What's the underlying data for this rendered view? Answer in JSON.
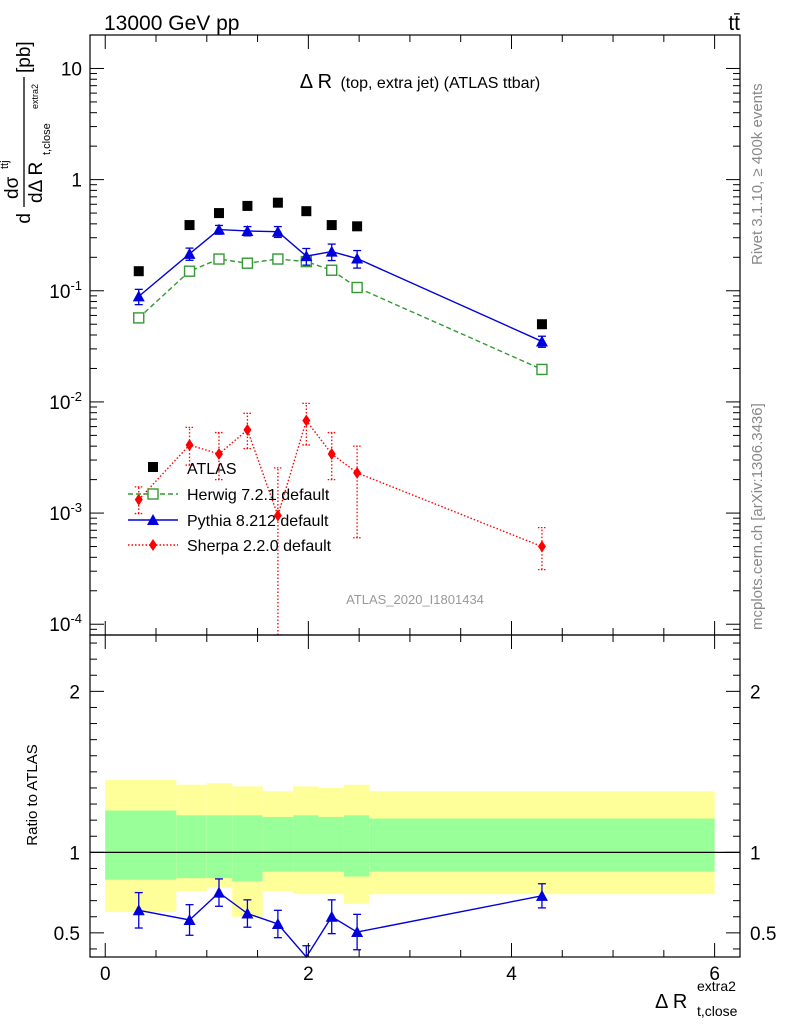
{
  "header": {
    "energy_label": "13000 GeV pp",
    "process_label": "tt̄"
  },
  "side_text": {
    "rivet": "Rivet 3.1.10, ≥ 400k events",
    "mcplots": "mcplots.cern.ch [arXiv:1306.3436]"
  },
  "colors": {
    "atlas": "#000000",
    "herwig": "#339933",
    "pythia": "#0000dd",
    "sherpa": "#ff0000",
    "band_inner": "#99ff99",
    "band_outer": "#ffff99"
  },
  "chart_data": [
    {
      "type": "scatter",
      "title": "Δ R (top, extra jet) (ATLAS ttbar)",
      "title_main": "Δ R",
      "title_sub": "(top, extra jet) (ATLAS ttbar)",
      "analysis_id": "ATLAS_2020_I1801434",
      "ylabel": "dσ^ttj / dΔ R_t,close^extra2 [pb]",
      "ylabel_parts": {
        "d1": "d",
        "sigma": "dσ",
        "sigma_sup": "ttj",
        "denominator": "dΔ R",
        "den_sub": "t,close",
        "den_sup": "extra2",
        "unit": "[pb]"
      },
      "yscale": "log",
      "ylim": [
        8e-05,
        20
      ],
      "xlim": [
        -0.15,
        6.25
      ],
      "ytick_labels": [
        "10^-4",
        "10^-3",
        "10^-2",
        "10^-1",
        "1",
        "10"
      ],
      "ytick_values": [
        0.0001,
        0.001,
        0.01,
        0.1,
        1,
        10
      ],
      "legend_position": "lower-left",
      "series": [
        {
          "name": "ATLAS",
          "style": "square",
          "x": [
            0.33,
            0.83,
            1.12,
            1.4,
            1.7,
            1.98,
            2.23,
            2.48,
            4.3
          ],
          "y": [
            0.15,
            0.39,
            0.5,
            0.58,
            0.62,
            0.52,
            0.39,
            0.38,
            0.05
          ]
        },
        {
          "name": "Herwig 7.2.1 default",
          "style": "open-square-dashed",
          "x": [
            0.33,
            0.83,
            1.12,
            1.4,
            1.7,
            1.98,
            2.23,
            2.48,
            4.3
          ],
          "y": [
            0.057,
            0.15,
            0.193,
            0.177,
            0.193,
            0.183,
            0.153,
            0.107,
            0.0196
          ]
        },
        {
          "name": "Pythia 8.212 default",
          "style": "triangle-solid",
          "x": [
            0.33,
            0.83,
            1.12,
            1.4,
            1.7,
            1.98,
            2.23,
            2.48,
            4.3
          ],
          "y": [
            0.089,
            0.215,
            0.355,
            0.345,
            0.34,
            0.205,
            0.225,
            0.195,
            0.035
          ],
          "err": [
            0.014,
            0.027,
            0.032,
            0.033,
            0.038,
            0.035,
            0.038,
            0.035,
            0.004
          ]
        },
        {
          "name": "Sherpa 2.2.0 default",
          "style": "diamond-dotted",
          "x": [
            0.33,
            0.83,
            1.12,
            1.4,
            1.7,
            1.98,
            2.23,
            2.48,
            4.3
          ],
          "y": [
            0.00132,
            0.0041,
            0.0034,
            0.0056,
            0.00095,
            0.0068,
            0.0034,
            0.0023,
            0.0005
          ],
          "err_lo": [
            0.00033,
            0.0014,
            0.0014,
            0.0018,
            0.00091,
            0.0027,
            0.0014,
            0.0017,
            0.00019
          ],
          "err_hi": [
            0.0004,
            0.0018,
            0.0019,
            0.0023,
            0.0016,
            0.0029,
            0.0019,
            0.0017,
            0.00024
          ]
        }
      ]
    },
    {
      "type": "line",
      "ylabel": "Ratio to ATLAS",
      "xlabel": "Δ R_t,close^extra2",
      "xlabel_parts": {
        "main": "Δ R",
        "sub": "t,close",
        "sup": "extra2"
      },
      "ylim": [
        0.35,
        2.35
      ],
      "xlim": [
        -0.15,
        6.25
      ],
      "xtick_labels": [
        "0",
        "2",
        "4",
        "6"
      ],
      "xtick_values": [
        0,
        2,
        4,
        6
      ],
      "ytick_labels": [
        "0.5",
        "1",
        "2"
      ],
      "ytick_values": [
        0.5,
        1,
        2
      ],
      "reference_line": 1,
      "bands": {
        "edges": [
          0,
          0.7,
          1.0,
          1.25,
          1.55,
          1.85,
          2.1,
          2.35,
          2.6,
          6.0
        ],
        "outer_lo": [
          0.63,
          0.76,
          0.78,
          0.6,
          0.76,
          0.74,
          0.74,
          0.68,
          0.74
        ],
        "outer_hi": [
          1.45,
          1.42,
          1.43,
          1.41,
          1.38,
          1.41,
          1.4,
          1.42,
          1.38
        ],
        "inner_lo": [
          0.83,
          0.84,
          0.84,
          0.82,
          0.88,
          0.88,
          0.88,
          0.85,
          0.88
        ],
        "inner_hi": [
          1.26,
          1.23,
          1.23,
          1.23,
          1.22,
          1.23,
          1.22,
          1.23,
          1.21
        ]
      },
      "series": [
        {
          "name": "Pythia 8.212 default",
          "x": [
            0.33,
            0.83,
            1.12,
            1.4,
            1.7,
            1.98,
            2.23,
            2.48,
            4.3
          ],
          "y": [
            0.64,
            0.58,
            0.75,
            0.62,
            0.555,
            0.34,
            0.6,
            0.505,
            0.73
          ],
          "err": [
            0.11,
            0.095,
            0.085,
            0.085,
            0.085,
            0.08,
            0.105,
            0.11,
            0.075
          ]
        }
      ]
    }
  ]
}
